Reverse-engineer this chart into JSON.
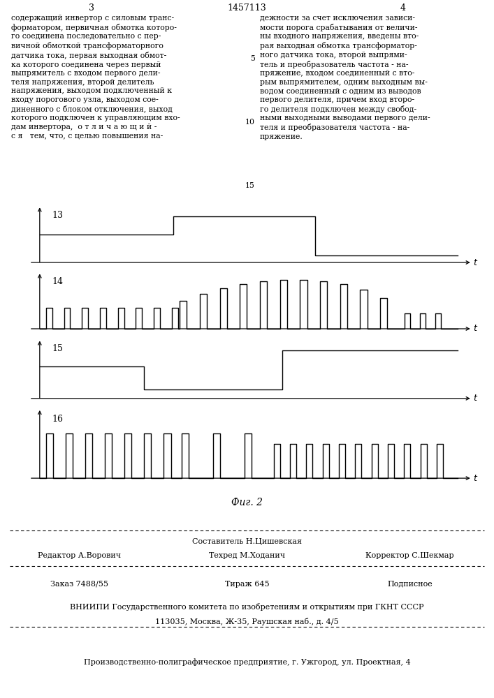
{
  "page_number_left": "3",
  "page_number_center": "1457113",
  "page_number_right": "4",
  "fig_label": "Фиг. 2",
  "footer_line1_left": "Редактор А.Ворович",
  "footer_sestavitel": "Составитель Н.Цишевская",
  "footer_tehred": "Техред М.Ходанич",
  "footer_korrektor": "Корректор С.Шекмар",
  "footer_line2_left": "Заказ 7488/55",
  "footer_line2_center": "Тираж 645",
  "footer_line2_right": "Подписное",
  "footer_line3": "ВНИИПИ Государственного комитета по изобретениям и открытиям при ГКНТ СССР",
  "footer_line4": "113035, Москва, Ж-35, Раушская наб., д. 4/5",
  "footer_line5": "Производственно-полиграфическое предприятие, г. Ужгород, ул. Проектная, 4",
  "bg_color": "#ffffff",
  "text_color": "#000000"
}
